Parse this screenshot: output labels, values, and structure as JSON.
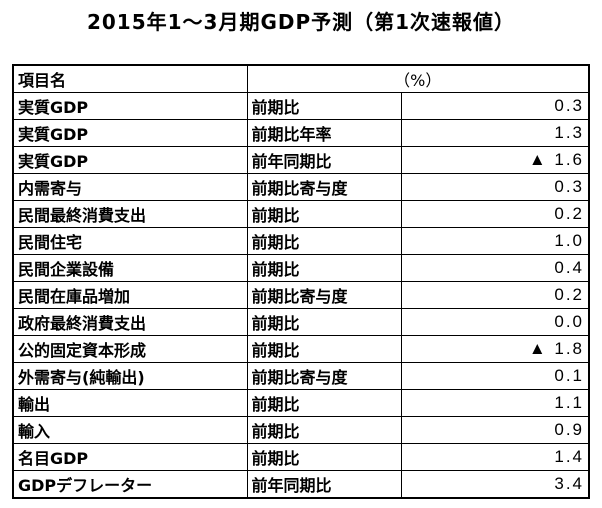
{
  "header": {
    "title": "2015年1～3月期GDP予測（第1次速報値）"
  },
  "table": {
    "columns": [
      "項目名",
      "（%）"
    ],
    "rows": [
      [
        "実質GDP",
        "前期比",
        "0.3"
      ],
      [
        "実質GDP",
        "前期比年率",
        "1.3"
      ],
      [
        "実質GDP",
        "前年同期比",
        "▲ 1.6"
      ],
      [
        "内需寄与",
        "前期比寄与度",
        "0.3"
      ],
      [
        "民間最終消費支出",
        "前期比",
        "0.2"
      ],
      [
        "民間住宅",
        "前期比",
        "1.0"
      ],
      [
        "民間企業設備",
        "前期比",
        "0.4"
      ],
      [
        "民間在庫品増加",
        "前期比寄与度",
        "0.2"
      ],
      [
        "政府最終消費支出",
        "前期比",
        "0.0"
      ],
      [
        "公的固定資本形成",
        "前期比",
        "▲ 1.8"
      ],
      [
        "外需寄与(純輸出)",
        "前期比寄与度",
        "0.1"
      ],
      [
        "輸出",
        "前期比",
        "1.1"
      ],
      [
        "輸入",
        "前期比",
        "0.9"
      ],
      [
        "名目GDP",
        "前期比",
        "1.4"
      ],
      [
        "GDPデフレーター",
        "前年同期比",
        "3.4"
      ]
    ]
  }
}
